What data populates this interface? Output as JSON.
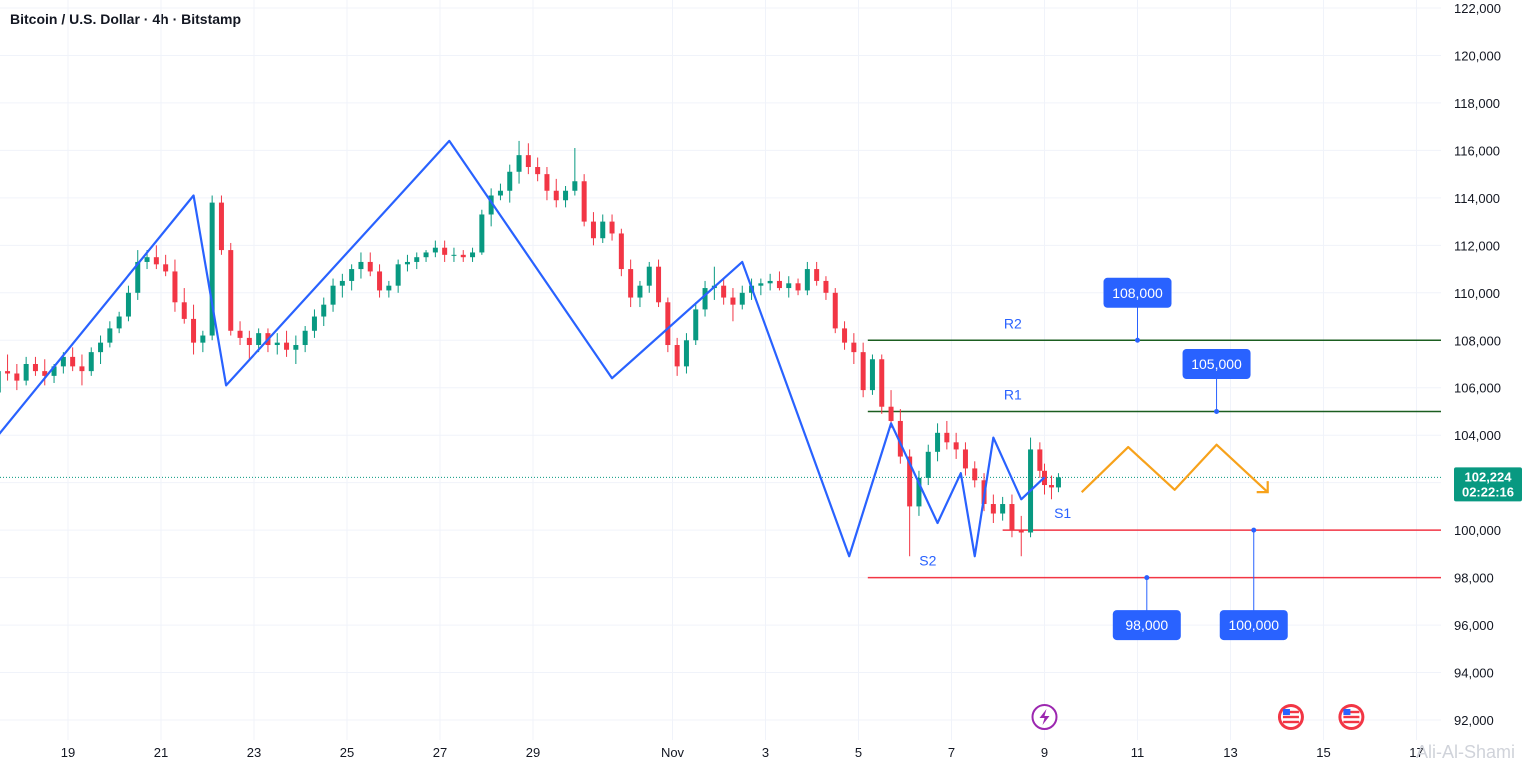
{
  "header": {
    "title": "Bitcoin / U.S. Dollar · 4h · Bitstamp"
  },
  "watermark": "Ali-Al-Shami",
  "chart_data": {
    "type": "candlestick",
    "y_ticks": [
      "122,000",
      "120,000",
      "118,000",
      "116,000",
      "114,000",
      "112,000",
      "110,000",
      "108,000",
      "106,000",
      "104,000",
      "102,000",
      "100,000",
      "98,000",
      "96,000",
      "94,000",
      "92,000"
    ],
    "ylim": [
      91500,
      122500
    ],
    "x_ticks": [
      {
        "label": "19",
        "day": 19
      },
      {
        "label": "21",
        "day": 21
      },
      {
        "label": "23",
        "day": 23
      },
      {
        "label": "25",
        "day": 25
      },
      {
        "label": "27",
        "day": 27
      },
      {
        "label": "29",
        "day": 29
      },
      {
        "label": "Nov",
        "day": 32
      },
      {
        "label": "3",
        "day": 34
      },
      {
        "label": "5",
        "day": 36
      },
      {
        "label": "7",
        "day": 38
      },
      {
        "label": "9",
        "day": 40
      },
      {
        "label": "11",
        "day": 42
      },
      {
        "label": "13",
        "day": 44
      },
      {
        "label": "15",
        "day": 46
      },
      {
        "label": "17",
        "day": 48
      }
    ],
    "current_price": "102,224",
    "countdown": "02:22:16",
    "colors": {
      "up": "#089981",
      "down": "#f23645",
      "zigzag": "#2962ff",
      "projection": "#f7a21b",
      "resistance": "#1b5e20",
      "support": "#f23645",
      "callout": "#2962ff",
      "price_tag": "#089981"
    },
    "levels": [
      {
        "label": "R2",
        "price": 108000,
        "kind": "resistance",
        "start_day": 36.2
      },
      {
        "label": "R1",
        "price": 105000,
        "kind": "resistance",
        "start_day": 36.2
      },
      {
        "label": "S1",
        "price": 100000,
        "kind": "support",
        "start_day": 39.1
      },
      {
        "label": "S2",
        "price": 98000,
        "kind": "support",
        "start_day": 36.2
      }
    ],
    "callouts": [
      {
        "text": "108,000",
        "anchor_day": 42.0,
        "anchor_price": 108000,
        "box_price": 110000
      },
      {
        "text": "105,000",
        "anchor_day": 43.7,
        "anchor_price": 105000,
        "box_price": 107000
      },
      {
        "text": "98,000",
        "anchor_day": 42.2,
        "anchor_price": 98000,
        "box_price": 96000
      },
      {
        "text": "100,000",
        "anchor_day": 44.5,
        "anchor_price": 100000,
        "box_price": 96000
      }
    ],
    "zigzag": [
      {
        "day": 17.5,
        "price": 104000
      },
      {
        "day": 21.7,
        "price": 114100
      },
      {
        "day": 22.4,
        "price": 106100
      },
      {
        "day": 27.2,
        "price": 116400
      },
      {
        "day": 30.7,
        "price": 106400
      },
      {
        "day": 33.5,
        "price": 111300
      },
      {
        "day": 35.8,
        "price": 98900
      },
      {
        "day": 36.7,
        "price": 104500
      },
      {
        "day": 37.7,
        "price": 100300
      },
      {
        "day": 38.2,
        "price": 102400
      },
      {
        "day": 38.5,
        "price": 98900
      },
      {
        "day": 38.9,
        "price": 103900
      },
      {
        "day": 39.5,
        "price": 101300
      },
      {
        "day": 40.0,
        "price": 102224
      }
    ],
    "projection": [
      {
        "day": 40.8,
        "price": 101600
      },
      {
        "day": 41.8,
        "price": 103500
      },
      {
        "day": 42.8,
        "price": 101700
      },
      {
        "day": 43.7,
        "price": 103600
      },
      {
        "day": 44.8,
        "price": 101600
      }
    ],
    "candles": [
      [
        17.5,
        105800,
        106900,
        105600,
        106700
      ],
      [
        17.7,
        106700,
        107400,
        106300,
        106600
      ],
      [
        17.9,
        106600,
        107000,
        105900,
        106300
      ],
      [
        18.1,
        106300,
        107300,
        106100,
        107000
      ],
      [
        18.3,
        107000,
        107300,
        106500,
        106700
      ],
      [
        18.5,
        106700,
        107200,
        106100,
        106500
      ],
      [
        18.7,
        106500,
        107000,
        106200,
        106900
      ],
      [
        18.9,
        106900,
        107500,
        106600,
        107300
      ],
      [
        19.1,
        107300,
        107700,
        106700,
        106900
      ],
      [
        19.3,
        106900,
        107400,
        106100,
        106700
      ],
      [
        19.5,
        106700,
        107700,
        106500,
        107500
      ],
      [
        19.7,
        107500,
        108200,
        107000,
        107900
      ],
      [
        19.9,
        107900,
        108800,
        107700,
        108500
      ],
      [
        20.1,
        108500,
        109200,
        108300,
        109000
      ],
      [
        20.3,
        109000,
        110300,
        108800,
        110000
      ],
      [
        20.5,
        110000,
        111800,
        109700,
        111300
      ],
      [
        20.7,
        111300,
        111800,
        111000,
        111500
      ],
      [
        20.9,
        111500,
        112000,
        111000,
        111200
      ],
      [
        21.1,
        111200,
        111600,
        110700,
        110900
      ],
      [
        21.3,
        110900,
        111400,
        109200,
        109600
      ],
      [
        21.5,
        109600,
        110200,
        108700,
        108900
      ],
      [
        21.7,
        108900,
        109500,
        107400,
        107900
      ],
      [
        21.9,
        107900,
        108400,
        107500,
        108200
      ],
      [
        22.1,
        108200,
        114100,
        108000,
        113800
      ],
      [
        22.3,
        113800,
        114100,
        111600,
        111800
      ],
      [
        22.5,
        111800,
        112100,
        108200,
        108400
      ],
      [
        22.7,
        108400,
        108800,
        107800,
        108100
      ],
      [
        22.9,
        108100,
        108400,
        107200,
        107800
      ],
      [
        23.1,
        107800,
        108500,
        107500,
        108300
      ],
      [
        23.3,
        108300,
        108500,
        107500,
        107800
      ],
      [
        23.5,
        107800,
        108300,
        107400,
        107900
      ],
      [
        23.7,
        107900,
        108400,
        107300,
        107600
      ],
      [
        23.9,
        107600,
        108200,
        107000,
        107800
      ],
      [
        24.1,
        107800,
        108600,
        107500,
        108400
      ],
      [
        24.3,
        108400,
        109300,
        108100,
        109000
      ],
      [
        24.5,
        109000,
        109800,
        108600,
        109500
      ],
      [
        24.7,
        109500,
        110600,
        109200,
        110300
      ],
      [
        24.9,
        110300,
        110800,
        109800,
        110500
      ],
      [
        25.1,
        110500,
        111200,
        110100,
        111000
      ],
      [
        25.3,
        111000,
        111700,
        110600,
        111300
      ],
      [
        25.5,
        111300,
        111700,
        110700,
        110900
      ],
      [
        25.7,
        110900,
        111200,
        109800,
        110100
      ],
      [
        25.9,
        110100,
        110500,
        109800,
        110300
      ],
      [
        26.1,
        110300,
        111400,
        110000,
        111200
      ],
      [
        26.3,
        111200,
        111600,
        110900,
        111300
      ],
      [
        26.5,
        111300,
        111700,
        111000,
        111500
      ],
      [
        26.7,
        111500,
        111800,
        111300,
        111700
      ],
      [
        26.9,
        111700,
        112200,
        111500,
        111900
      ],
      [
        27.1,
        111900,
        112200,
        111300,
        111600
      ],
      [
        27.3,
        111600,
        111900,
        111300,
        111600
      ],
      [
        27.5,
        111600,
        111800,
        111300,
        111500
      ],
      [
        27.7,
        111500,
        111900,
        111300,
        111700
      ],
      [
        27.9,
        111700,
        113500,
        111600,
        113300
      ],
      [
        28.1,
        113300,
        114400,
        112800,
        114100
      ],
      [
        28.3,
        114100,
        114600,
        113900,
        114300
      ],
      [
        28.5,
        114300,
        115400,
        113800,
        115100
      ],
      [
        28.7,
        115100,
        116400,
        114600,
        115800
      ],
      [
        28.9,
        115800,
        116300,
        115000,
        115300
      ],
      [
        29.1,
        115300,
        115700,
        114700,
        115000
      ],
      [
        29.3,
        115000,
        115300,
        113900,
        114300
      ],
      [
        29.5,
        114300,
        114800,
        113600,
        113900
      ],
      [
        29.7,
        113900,
        114500,
        113600,
        114300
      ],
      [
        29.9,
        114300,
        116100,
        114100,
        114700
      ],
      [
        30.1,
        114700,
        115000,
        112800,
        113000
      ],
      [
        30.3,
        113000,
        113400,
        112000,
        112300
      ],
      [
        30.5,
        112300,
        113300,
        112100,
        113000
      ],
      [
        30.7,
        113000,
        113300,
        112200,
        112500
      ],
      [
        30.9,
        112500,
        112700,
        110700,
        111000
      ],
      [
        31.1,
        111000,
        111400,
        109400,
        109800
      ],
      [
        31.3,
        109800,
        110500,
        109400,
        110300
      ],
      [
        31.5,
        110300,
        111300,
        110000,
        111100
      ],
      [
        31.7,
        111100,
        111400,
        109400,
        109600
      ],
      [
        31.9,
        109600,
        109800,
        107500,
        107800
      ],
      [
        32.1,
        107800,
        108100,
        106500,
        106900
      ],
      [
        32.3,
        106900,
        108300,
        106600,
        108000
      ],
      [
        32.5,
        108000,
        109600,
        107800,
        109300
      ],
      [
        32.7,
        109300,
        110500,
        109000,
        110200
      ],
      [
        32.9,
        110200,
        111100,
        109700,
        110300
      ],
      [
        33.1,
        110300,
        110600,
        109500,
        109800
      ],
      [
        33.3,
        109800,
        110200,
        108800,
        109500
      ],
      [
        33.5,
        109500,
        110300,
        109300,
        110000
      ],
      [
        33.7,
        110000,
        110600,
        109700,
        110300
      ],
      [
        33.9,
        110300,
        110600,
        109900,
        110400
      ],
      [
        34.1,
        110400,
        110800,
        110100,
        110500
      ],
      [
        34.3,
        110500,
        110900,
        110100,
        110200
      ],
      [
        34.5,
        110200,
        110700,
        109800,
        110400
      ],
      [
        34.7,
        110400,
        110600,
        109900,
        110100
      ],
      [
        34.9,
        110100,
        111300,
        109900,
        111000
      ],
      [
        35.1,
        111000,
        111300,
        110300,
        110500
      ],
      [
        35.3,
        110500,
        110700,
        109700,
        110000
      ],
      [
        35.5,
        110000,
        110200,
        108300,
        108500
      ],
      [
        35.7,
        108500,
        108800,
        107600,
        107900
      ],
      [
        35.9,
        107900,
        108300,
        107000,
        107500
      ],
      [
        36.1,
        107500,
        107900,
        105600,
        105900
      ],
      [
        36.3,
        105900,
        107400,
        105700,
        107200
      ],
      [
        36.5,
        107200,
        107400,
        104900,
        105200
      ],
      [
        36.7,
        105200,
        105900,
        104300,
        104600
      ],
      [
        36.9,
        104600,
        105100,
        102800,
        103100
      ],
      [
        37.1,
        103100,
        103400,
        98900,
        101000
      ],
      [
        37.3,
        101000,
        102500,
        100600,
        102200
      ],
      [
        37.5,
        102200,
        103600,
        101900,
        103300
      ],
      [
        37.7,
        103300,
        104500,
        102900,
        104100
      ],
      [
        37.9,
        104100,
        104600,
        103400,
        103700
      ],
      [
        38.1,
        103700,
        104100,
        103000,
        103400
      ],
      [
        38.3,
        103400,
        103700,
        102300,
        102600
      ],
      [
        38.5,
        102600,
        102900,
        101800,
        102100
      ],
      [
        38.7,
        102100,
        102400,
        100800,
        101100
      ],
      [
        38.9,
        101100,
        101500,
        100300,
        100700
      ],
      [
        39.1,
        100700,
        101400,
        100400,
        101100
      ],
      [
        39.3,
        101100,
        101500,
        99700,
        100000
      ],
      [
        39.5,
        100000,
        100600,
        98900,
        99900
      ],
      [
        39.7,
        99900,
        103900,
        99700,
        103400
      ],
      [
        39.9,
        103400,
        103700,
        102200,
        102500
      ],
      [
        40.0,
        102500,
        102800,
        101500,
        101900
      ],
      [
        40.15,
        101900,
        102300,
        101300,
        101800
      ],
      [
        40.3,
        101800,
        102400,
        101600,
        102224
      ]
    ],
    "events": [
      {
        "name": "lightning-icon",
        "day": 40.0
      },
      {
        "name": "us-flag-icon",
        "day": 45.3
      },
      {
        "name": "us-flag-icon",
        "day": 46.6
      }
    ]
  }
}
